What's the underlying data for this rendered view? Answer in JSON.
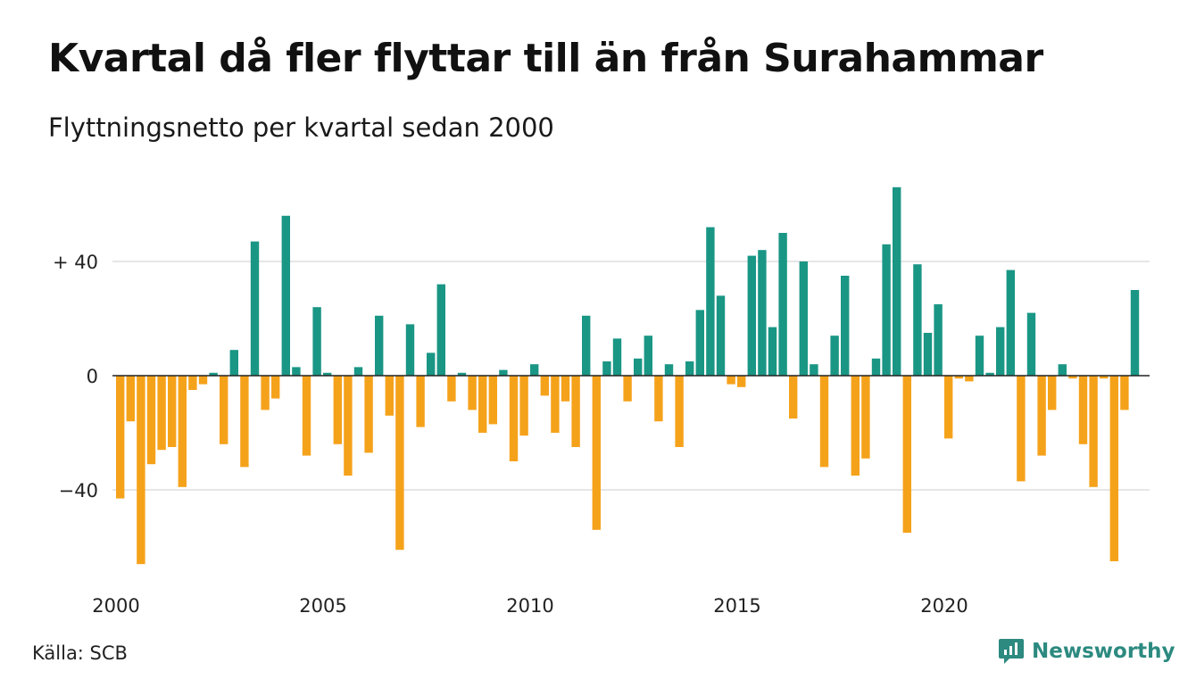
{
  "chart_data": {
    "type": "bar",
    "title": "Kvartal då fler flyttar till än från Surahammar",
    "subtitle": "Flyttningsnetto per kvartal sedan 2000",
    "x_tick_labels": [
      "2000",
      "2005",
      "2010",
      "2015",
      "2020"
    ],
    "y_tick_labels": [
      "+ 40",
      "0",
      "−40"
    ],
    "y_ticks": [
      40,
      0,
      -40
    ],
    "ylim": [
      -68,
      68
    ],
    "grid": true,
    "colors": {
      "positive": "#1a9685",
      "negative": "#f5a21b"
    },
    "categories": [
      "2000 K1",
      "2000 K2",
      "2000 K3",
      "2000 K4",
      "2001 K1",
      "2001 K2",
      "2001 K3",
      "2001 K4",
      "2002 K1",
      "2002 K2",
      "2002 K3",
      "2002 K4",
      "2003 K1",
      "2003 K2",
      "2003 K3",
      "2003 K4",
      "2004 K1",
      "2004 K2",
      "2004 K3",
      "2004 K4",
      "2005 K1",
      "2005 K2",
      "2005 K3",
      "2005 K4",
      "2006 K1",
      "2006 K2",
      "2006 K3",
      "2006 K4",
      "2007 K1",
      "2007 K2",
      "2007 K3",
      "2007 K4",
      "2008 K1",
      "2008 K2",
      "2008 K3",
      "2008 K4",
      "2009 K1",
      "2009 K2",
      "2009 K3",
      "2009 K4",
      "2010 K1",
      "2010 K2",
      "2010 K3",
      "2010 K4",
      "2011 K1",
      "2011 K2",
      "2011 K3",
      "2011 K4",
      "2012 K1",
      "2012 K2",
      "2012 K3",
      "2012 K4",
      "2013 K1",
      "2013 K2",
      "2013 K3",
      "2013 K4",
      "2014 K1",
      "2014 K2",
      "2014 K3",
      "2014 K4",
      "2015 K1",
      "2015 K2",
      "2015 K3",
      "2015 K4",
      "2016 K1",
      "2016 K2",
      "2016 K3",
      "2016 K4",
      "2017 K1",
      "2017 K2",
      "2017 K3",
      "2017 K4",
      "2018 K1",
      "2018 K2",
      "2018 K3",
      "2018 K4",
      "2019 K1",
      "2019 K2",
      "2019 K3",
      "2019 K4",
      "2020 K1",
      "2020 K2",
      "2020 K3",
      "2020 K4",
      "2021 K1",
      "2021 K2",
      "2021 K3",
      "2021 K4",
      "2022 K1",
      "2022 K2",
      "2022 K3",
      "2022 K4",
      "2023 K1",
      "2023 K2",
      "2023 K3",
      "2023 K4",
      "2024 K1",
      "2024 K2",
      "2024 K3",
      "2024 K4"
    ],
    "values": [
      -43,
      -16,
      -66,
      -31,
      -26,
      -25,
      -39,
      -5,
      -3,
      1,
      -24,
      9,
      -32,
      47,
      -12,
      -8,
      56,
      3,
      -28,
      24,
      1,
      -24,
      -35,
      3,
      -27,
      21,
      -14,
      -61,
      18,
      -18,
      8,
      32,
      -9,
      1,
      -12,
      -20,
      -17,
      2,
      -30,
      -21,
      4,
      -7,
      -20,
      -9,
      -25,
      21,
      -54,
      5,
      13,
      -9,
      6,
      14,
      -16,
      4,
      -25,
      5,
      23,
      52,
      28,
      -3,
      -4,
      42,
      44,
      17,
      50,
      -15,
      40,
      4,
      -32,
      14,
      35,
      -35,
      -29,
      6,
      46,
      66,
      -55,
      39,
      15,
      25,
      -22,
      -1,
      -2,
      14,
      1,
      17,
      37,
      -37,
      22,
      -28,
      -12,
      4,
      -1,
      -24,
      -39,
      -1,
      -65,
      -12,
      30,
      0
    ]
  },
  "footer": {
    "source": "Källa: SCB",
    "brand": "Newsworthy",
    "brand_icon": "newsworthy-logo-icon"
  }
}
